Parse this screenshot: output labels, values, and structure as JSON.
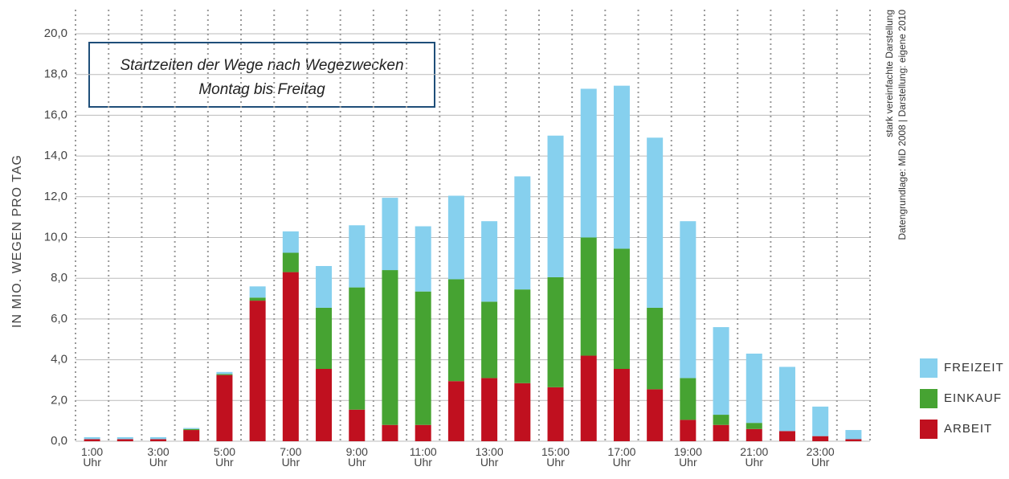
{
  "chart_data": {
    "type": "stacked_bar",
    "title": "Startzeiten der Wege nach Wegezwecken",
    "subtitle": "Montag bis Freitag",
    "y_label": "IN MIO. WEGEN PRO TAG",
    "notes": [
      "stark vereinfachte Darstellung",
      "Datengrundlage: MiD 2008  |  Darstellung: eigene 2010"
    ],
    "categories": [
      "1:00 Uhr",
      null,
      "3:00 Uhr",
      null,
      "5:00 Uhr",
      null,
      "7:00 Uhr",
      null,
      "9:00 Uhr",
      null,
      "11:00 Uhr",
      null,
      "13:00 Uhr",
      null,
      "15:00 Uhr",
      null,
      "17:00 Uhr",
      null,
      "19:00 Uhr",
      null,
      "21:00 Uhr",
      null,
      "23:00 Uhr",
      null
    ],
    "series": [
      {
        "name": "ARBEIT",
        "color": "#c0101f",
        "values": [
          0.1,
          0.1,
          0.1,
          0.55,
          3.25,
          6.9,
          8.3,
          3.55,
          1.55,
          0.8,
          0.8,
          2.95,
          3.1,
          2.85,
          2.65,
          4.2,
          3.55,
          2.55,
          1.05,
          0.8,
          0.6,
          0.5,
          0.25,
          0.1
        ]
      },
      {
        "name": "EINKAUF",
        "color": "#46a332",
        "values": [
          0,
          0,
          0,
          0.05,
          0.05,
          0.15,
          0.95,
          3.0,
          6.0,
          7.6,
          6.55,
          5.0,
          3.75,
          4.6,
          5.4,
          5.8,
          5.9,
          4.0,
          2.05,
          0.5,
          0.3,
          0,
          0,
          0
        ]
      },
      {
        "name": "FREIZEIT",
        "color": "#86d0ee",
        "values": [
          0.1,
          0.1,
          0.1,
          0.05,
          0.1,
          0.55,
          1.05,
          2.05,
          3.05,
          3.55,
          3.2,
          4.1,
          3.95,
          5.55,
          6.95,
          7.3,
          8.0,
          8.35,
          7.7,
          4.3,
          3.4,
          3.15,
          1.45,
          0.45
        ]
      }
    ],
    "ylim": [
      0,
      20
    ],
    "yticks": [
      {
        "value": 0,
        "label": "0,0"
      },
      {
        "value": 2,
        "label": "2,0"
      },
      {
        "value": 4,
        "label": "4,0"
      },
      {
        "value": 6,
        "label": "6,0"
      },
      {
        "value": 8,
        "label": "8,0"
      },
      {
        "value": 10,
        "label": "10,0"
      },
      {
        "value": 12,
        "label": "12,0"
      },
      {
        "value": 14,
        "label": "14,0"
      },
      {
        "value": 16,
        "label": "16,0"
      },
      {
        "value": 18,
        "label": "18,0"
      },
      {
        "value": 20,
        "label": "20,0"
      }
    ],
    "grid": true,
    "legend": "lower right"
  }
}
